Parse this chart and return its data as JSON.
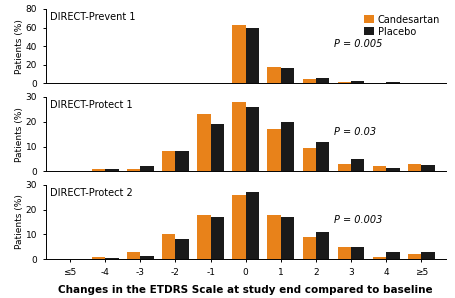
{
  "categories": [
    "≤5",
    "-4",
    "-3",
    "-2",
    "-1",
    "0",
    "1",
    "2",
    "3",
    "4",
    "≥5"
  ],
  "subplot1": {
    "title": "DIRECT-Prevent 1",
    "pvalue": "P = 0.005",
    "candesartan": [
      0.5,
      0.5,
      0.5,
      0.5,
      0.5,
      63,
      18,
      5,
      1.5,
      1,
      1
    ],
    "placebo": [
      0.5,
      0.5,
      0.5,
      0.5,
      0.5,
      59,
      17,
      6,
      3,
      1.5,
      1
    ],
    "ylim": [
      0,
      80
    ],
    "yticks": [
      0,
      20,
      40,
      60,
      80
    ]
  },
  "subplot2": {
    "title": "DIRECT-Protect 1",
    "pvalue": "P = 0.03",
    "candesartan": [
      0,
      1,
      1,
      8,
      23,
      28,
      17,
      9.5,
      3,
      2,
      3
    ],
    "placebo": [
      0,
      1,
      2,
      8,
      19,
      26,
      20,
      12,
      5,
      1.5,
      2.5
    ],
    "ylim": [
      0,
      30
    ],
    "yticks": [
      0,
      10,
      20,
      30
    ]
  },
  "subplot3": {
    "title": "DIRECT-Protect 2",
    "pvalue": "P = 0.003",
    "candesartan": [
      0,
      1,
      3,
      10,
      18,
      26,
      18,
      9,
      5,
      1,
      2
    ],
    "placebo": [
      0,
      0.5,
      1.5,
      8,
      17,
      27,
      17,
      11,
      5,
      3,
      3
    ],
    "ylim": [
      0,
      30
    ],
    "yticks": [
      0,
      10,
      20,
      30
    ]
  },
  "color_candesartan": "#E8821A",
  "color_placebo": "#1A1A1A",
  "xlabel": "Changes in the ETDRS Scale at study end compared to baseline",
  "ylabel": "Patients (%)",
  "legend_labels": [
    "Candesartan",
    "Placebo"
  ],
  "bar_width": 0.38,
  "background_color": "#ffffff",
  "title_fontsize": 7.0,
  "pvalue_fontsize": 7.0,
  "ylabel_fontsize": 6.5,
  "xlabel_fontsize": 7.5,
  "tick_fontsize": 6.5,
  "legend_fontsize": 7.0
}
